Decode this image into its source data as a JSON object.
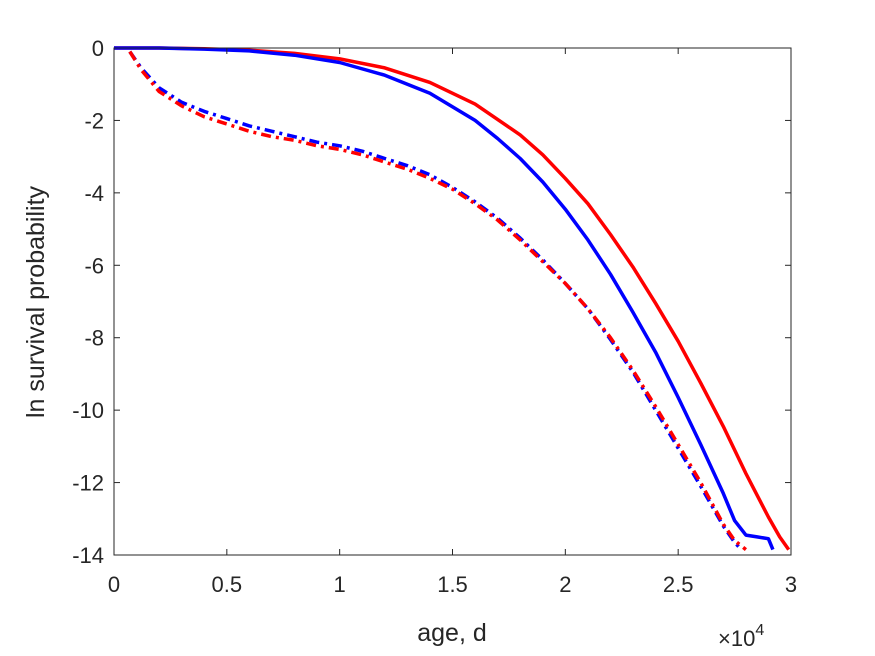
{
  "chart_data": {
    "type": "line",
    "title": "",
    "xlabel": "age, d",
    "ylabel": "ln survival probability",
    "x_exponent_label": {
      "base": "×10",
      "exponent": "4"
    },
    "xlim": [
      0,
      30000
    ],
    "ylim": [
      -14,
      0
    ],
    "xticks": [
      0,
      5000,
      10000,
      15000,
      20000,
      25000,
      30000
    ],
    "xtick_labels": [
      "0",
      "0.5",
      "1",
      "1.5",
      "2",
      "2.5",
      "3"
    ],
    "yticks": [
      0,
      -2,
      -4,
      -6,
      -8,
      -10,
      -12,
      -14
    ],
    "ytick_labels": [
      "0",
      "-2",
      "-4",
      "-6",
      "-8",
      "-10",
      "-12",
      "-14"
    ],
    "grid": false,
    "box": true,
    "series": [
      {
        "color": "#ff0000",
        "style": "solid",
        "x": [
          0,
          2000,
          4000,
          6000,
          8000,
          10000,
          12000,
          14000,
          16000,
          18000,
          19000,
          20000,
          21000,
          22000,
          23000,
          24000,
          25000,
          26000,
          27000,
          28000,
          28500,
          29000,
          29500,
          29900
        ],
        "y": [
          0,
          0,
          -0.02,
          -0.06,
          -0.15,
          -0.3,
          -0.55,
          -0.95,
          -1.55,
          -2.4,
          -2.95,
          -3.6,
          -4.3,
          -5.15,
          -6.05,
          -7.05,
          -8.1,
          -9.25,
          -10.45,
          -11.75,
          -12.35,
          -12.95,
          -13.5,
          -13.85
        ]
      },
      {
        "color": "#0000ff",
        "style": "solid",
        "x": [
          0,
          2000,
          4000,
          6000,
          8000,
          10000,
          12000,
          14000,
          16000,
          17000,
          18000,
          19000,
          20000,
          21000,
          22000,
          23000,
          24000,
          25000,
          26000,
          27000,
          27500,
          28000,
          28500,
          29000,
          29200
        ],
        "y": [
          0,
          0,
          -0.03,
          -0.08,
          -0.2,
          -0.4,
          -0.75,
          -1.25,
          -2.0,
          -2.5,
          -3.05,
          -3.7,
          -4.45,
          -5.3,
          -6.25,
          -7.3,
          -8.4,
          -9.65,
          -10.95,
          -12.3,
          -13.05,
          -13.45,
          -13.5,
          -13.55,
          -13.85
        ]
      },
      {
        "color": "#ff0000",
        "style": "dashdot",
        "x": [
          700,
          1200,
          2000,
          3000,
          4000,
          5000,
          6000,
          7000,
          8000,
          9000,
          10000,
          11000,
          12000,
          13000,
          14000,
          15000,
          16000,
          17000,
          18000,
          19000,
          20000,
          21000,
          22000,
          23000,
          24000,
          25000,
          26000,
          27000,
          27500,
          28000
        ],
        "y": [
          -0.1,
          -0.6,
          -1.2,
          -1.6,
          -1.9,
          -2.1,
          -2.3,
          -2.45,
          -2.55,
          -2.7,
          -2.8,
          -2.95,
          -3.15,
          -3.35,
          -3.6,
          -3.9,
          -4.3,
          -4.75,
          -5.3,
          -5.9,
          -6.5,
          -7.2,
          -8.0,
          -8.9,
          -9.9,
          -10.95,
          -12.0,
          -13.15,
          -13.6,
          -13.85
        ]
      },
      {
        "color": "#0000ff",
        "style": "dashdot",
        "x": [
          700,
          1200,
          2000,
          3000,
          4000,
          5000,
          6000,
          7000,
          8000,
          9000,
          10000,
          11000,
          12000,
          13000,
          14000,
          15000,
          16000,
          17000,
          18000,
          19000,
          20000,
          21000,
          22000,
          23000,
          24000,
          25000,
          26000,
          27000,
          27500,
          27800
        ],
        "y": [
          -0.1,
          -0.55,
          -1.1,
          -1.5,
          -1.75,
          -1.95,
          -2.15,
          -2.3,
          -2.45,
          -2.6,
          -2.7,
          -2.85,
          -3.05,
          -3.25,
          -3.5,
          -3.85,
          -4.25,
          -4.7,
          -5.25,
          -5.85,
          -6.5,
          -7.2,
          -8.05,
          -8.95,
          -10.0,
          -11.05,
          -12.1,
          -13.2,
          -13.65,
          -13.85
        ]
      }
    ]
  }
}
